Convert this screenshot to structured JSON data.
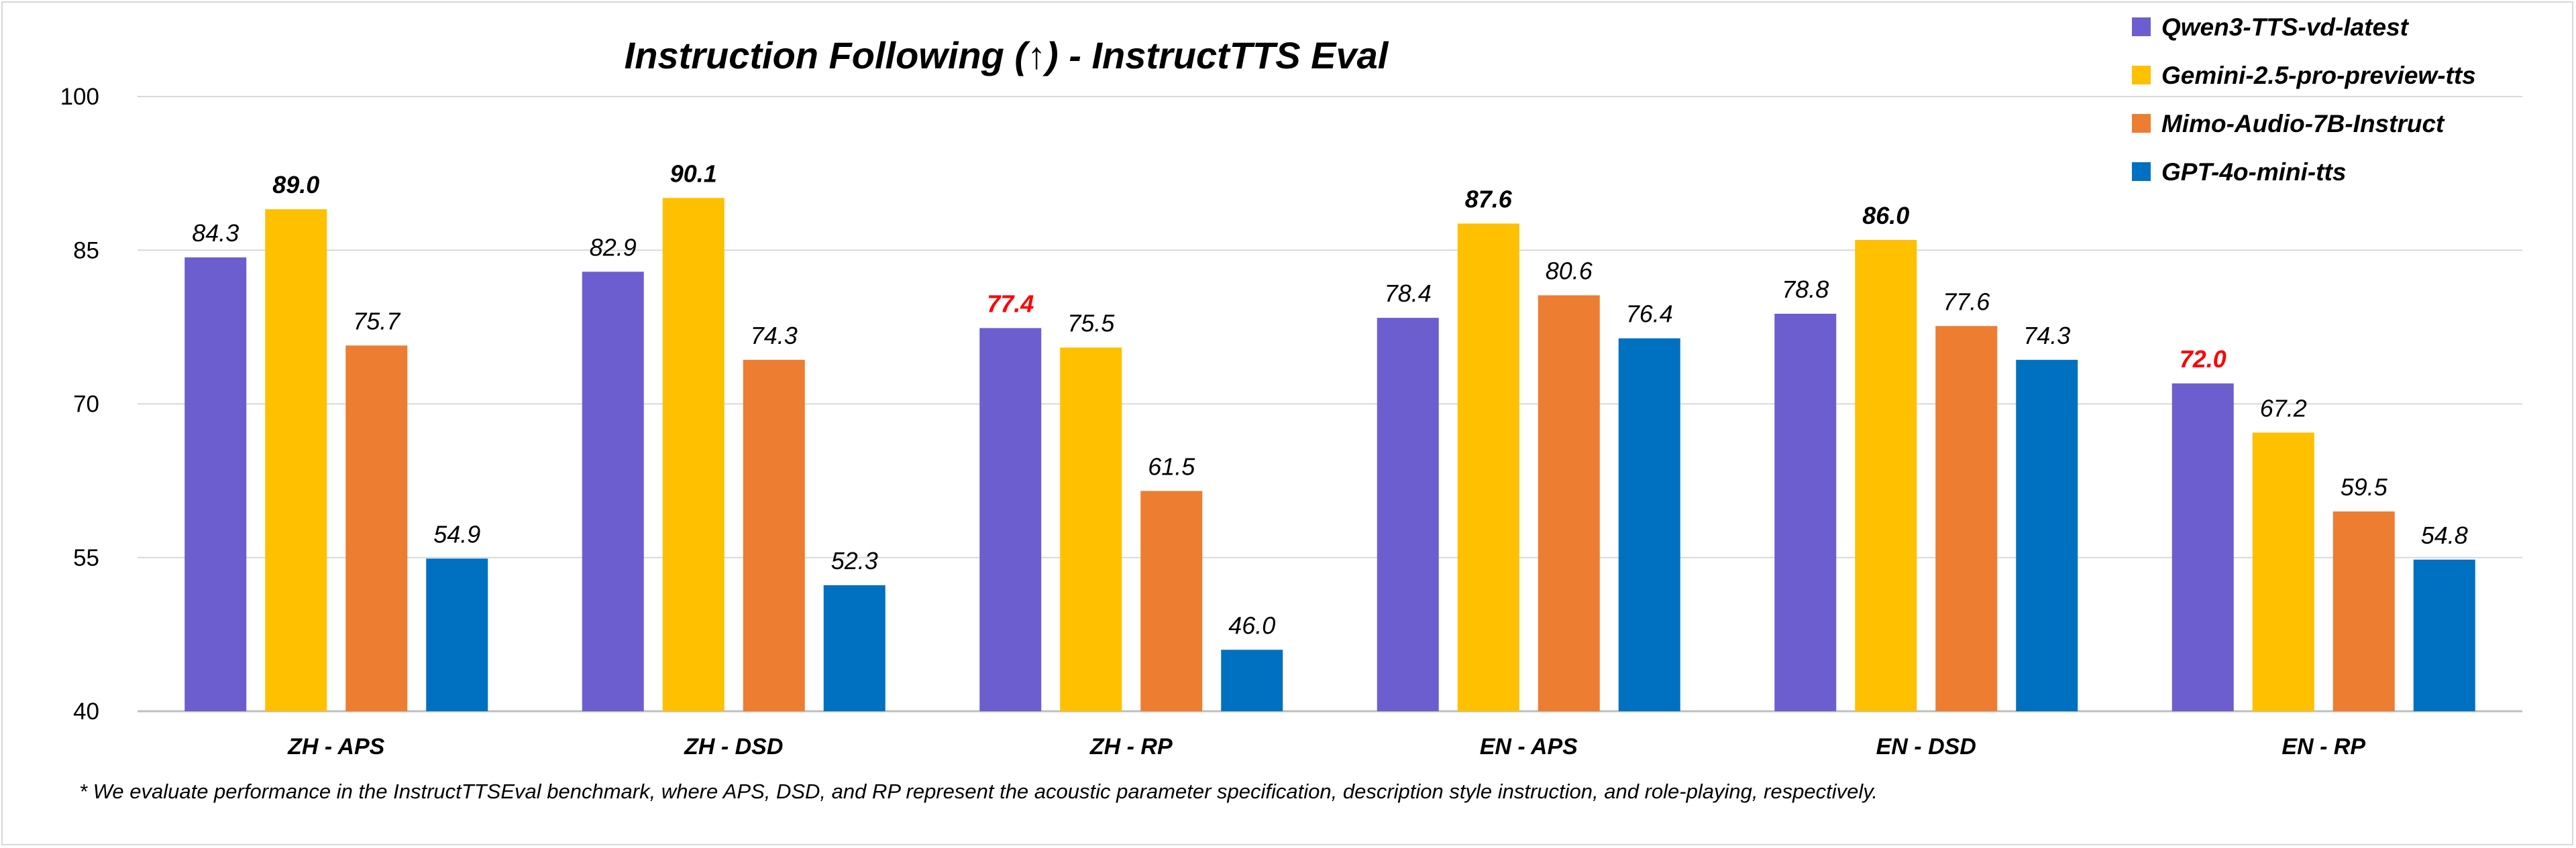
{
  "chart_data": {
    "type": "bar",
    "title": "Instruction Following (↑) - InstructTTS Eval",
    "footnote": "* We evaluate performance in the InstructTTSEval benchmark, where APS, DSD, and RP represent the acoustic parameter specification, description style instruction, and role-playing, respectively.",
    "categories": [
      "ZH - APS",
      "ZH - DSD",
      "ZH - RP",
      "EN - APS",
      "EN - DSD",
      "EN - RP"
    ],
    "ylim": [
      40,
      100
    ],
    "yticks": [
      "40",
      "55",
      "70",
      "85",
      "100"
    ],
    "grid": true,
    "legend_position": "top-right",
    "series": [
      {
        "name": "Qwen3-TTS-vd-latest",
        "color": "#6d5ecf",
        "values": [
          84.3,
          82.9,
          77.4,
          78.4,
          78.8,
          72.0
        ],
        "labels": [
          "84.3",
          "82.9",
          "77.4",
          "78.4",
          "78.8",
          "72.0"
        ]
      },
      {
        "name": "Gemini-2.5-pro-preview-tts",
        "color": "#ffc000",
        "values": [
          89.0,
          90.1,
          75.5,
          87.6,
          86.0,
          67.2
        ],
        "labels": [
          "89.0",
          "90.1",
          "75.5",
          "87.6",
          "86.0",
          "67.2"
        ]
      },
      {
        "name": "Mimo-Audio-7B-Instruct",
        "color": "#ed7d31",
        "values": [
          75.7,
          74.3,
          61.5,
          80.6,
          77.6,
          59.5
        ],
        "labels": [
          "75.7",
          "74.3",
          "61.5",
          "80.6",
          "77.6",
          "59.5"
        ]
      },
      {
        "name": "GPT-4o-mini-tts",
        "color": "#0070c0",
        "values": [
          54.9,
          52.3,
          46.0,
          76.4,
          74.3,
          54.8
        ],
        "labels": [
          "54.9",
          "52.3",
          "46.0",
          "76.4",
          "74.3",
          "54.8"
        ]
      }
    ],
    "highlight_color": "#ff0000",
    "highlights": [
      {
        "series": 0,
        "category": 2,
        "style": "bold-red"
      },
      {
        "series": 0,
        "category": 5,
        "style": "bold-red"
      },
      {
        "series": 1,
        "category": 0,
        "style": "bold"
      },
      {
        "series": 1,
        "category": 1,
        "style": "bold"
      },
      {
        "series": 1,
        "category": 3,
        "style": "bold"
      },
      {
        "series": 1,
        "category": 4,
        "style": "bold"
      }
    ]
  }
}
